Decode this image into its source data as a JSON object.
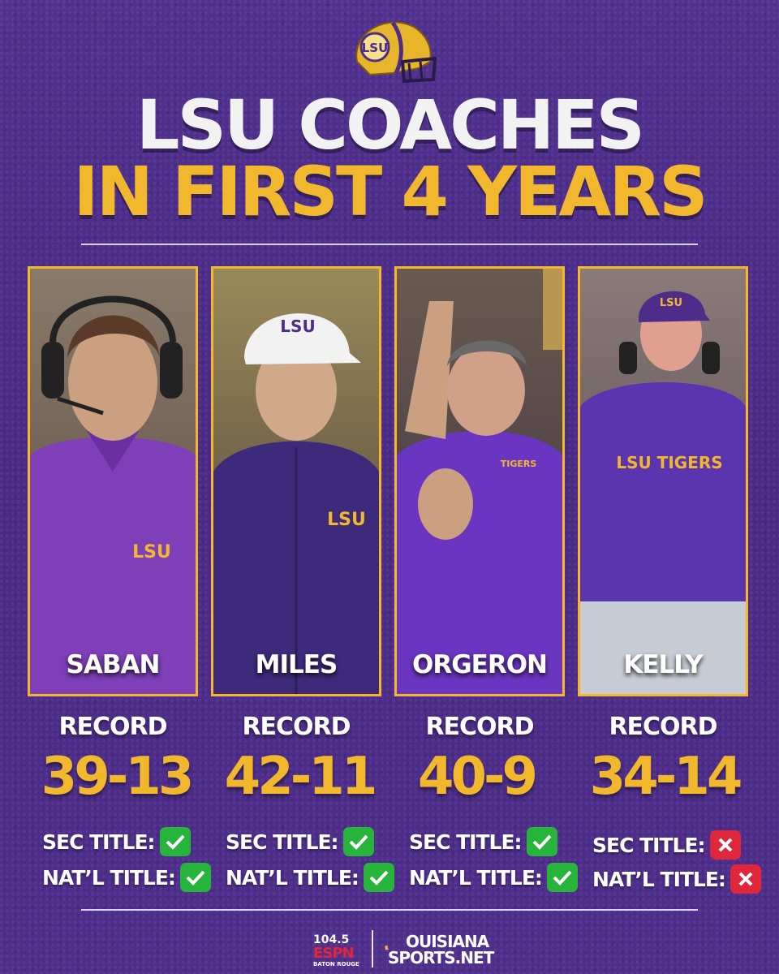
{
  "header": {
    "title_line1": "LSU COACHES",
    "title_line2": "IN FIRST 4 YEARS",
    "helmet_icon": "lsu-helmet-icon",
    "helmet_text": "LSU"
  },
  "colors": {
    "background": "#4d2c8a",
    "gold": "#f1b82d",
    "white": "#f2f2f2",
    "check_green": "#27b43a",
    "cross_red": "#e0263a"
  },
  "coaches": [
    {
      "name": "SABAN",
      "record_label": "RECORD",
      "record": "39-13",
      "sec_label": "SEC TITLE:",
      "sec_title": true,
      "natl_label": "NAT’L TITLE:",
      "natl_title": true,
      "shirt_text": "LSU"
    },
    {
      "name": "MILES",
      "record_label": "RECORD",
      "record": "42-11",
      "sec_label": "SEC TITLE:",
      "sec_title": true,
      "natl_label": "NAT’L TITLE:",
      "natl_title": true,
      "shirt_text": "LSU",
      "cap_text": "LSU"
    },
    {
      "name": "ORGERON",
      "record_label": "RECORD",
      "record": "40-9",
      "sec_label": "SEC TITLE:",
      "sec_title": true,
      "natl_label": "NAT’L TITLE:",
      "natl_title": true,
      "shirt_text": "TIGERS"
    },
    {
      "name": "KELLY",
      "record_label": "RECORD",
      "record": "34-14",
      "sec_label": "SEC TITLE:",
      "sec_title": false,
      "natl_label": "NAT’L TITLE:",
      "natl_title": false,
      "shirt_text": "LSU TIGERS",
      "cap_text": "LSU"
    }
  ],
  "footer": {
    "radio_freq": "104.5",
    "radio_brand": "ESPN",
    "radio_city": "BATON ROUGE",
    "site_line1": "OUISIANA",
    "site_line2": "SPORTS.NET"
  }
}
